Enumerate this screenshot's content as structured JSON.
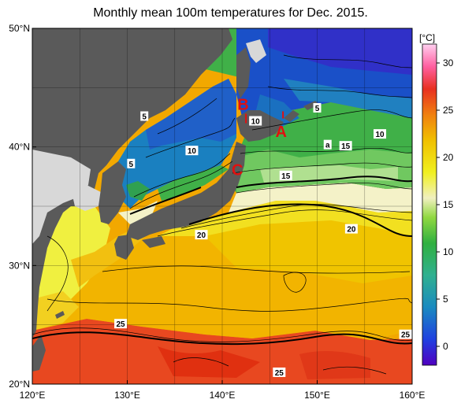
{
  "title": "Monthly mean 100m temperatures for Dec. 2015.",
  "map": {
    "lon_range": [
      120,
      160
    ],
    "lat_range": [
      20,
      50
    ],
    "lon_ticks": [
      {
        "lon": 120,
        "label": "120°E"
      },
      {
        "lon": 130,
        "label": "130°E"
      },
      {
        "lon": 140,
        "label": "140°E"
      },
      {
        "lon": 150,
        "label": "150°E"
      },
      {
        "lon": 160,
        "label": "160°E"
      }
    ],
    "lat_ticks": [
      {
        "lat": 50,
        "label": "50°N"
      },
      {
        "lat": 40,
        "label": "40°N"
      },
      {
        "lat": 30,
        "label": "30°N"
      },
      {
        "lat": 20,
        "label": "20°N"
      }
    ],
    "grid": true,
    "land_color": "#5a5a5a",
    "no_data_color": "#d8d8d8"
  },
  "colorbar": {
    "unit": "[°C]",
    "range": [
      -2,
      32
    ],
    "tick_labels": [
      "30",
      "25",
      "20",
      "15",
      "10",
      "5",
      "0"
    ],
    "tick_values": [
      30,
      25,
      20,
      15,
      10,
      5,
      0
    ]
  },
  "contour_labels": [
    {
      "text": "5",
      "lon": 150,
      "lat": 43.3
    },
    {
      "text": "5",
      "lon": 131.8,
      "lat": 42.6
    },
    {
      "text": "5",
      "lon": 130.4,
      "lat": 38.6
    },
    {
      "text": "10",
      "lon": 143.5,
      "lat": 42.2
    },
    {
      "text": "10",
      "lon": 136.8,
      "lat": 39.7
    },
    {
      "text": "10",
      "lon": 156.6,
      "lat": 41.1
    },
    {
      "text": "15",
      "lon": 153,
      "lat": 40.1
    },
    {
      "text": "15",
      "lon": 146.7,
      "lat": 37.6
    },
    {
      "text": "20",
      "lon": 137.8,
      "lat": 32.6
    },
    {
      "text": "20",
      "lon": 153.6,
      "lat": 33.1
    },
    {
      "text": "25",
      "lon": 129.3,
      "lat": 25.1
    },
    {
      "text": "25",
      "lon": 159.3,
      "lat": 24.2
    },
    {
      "text": "25",
      "lon": 146,
      "lat": 21
    },
    {
      "text": "a",
      "lon": 151.1,
      "lat": 40.2
    }
  ],
  "markers": [
    {
      "text": "A",
      "lon": 146.2,
      "lat": 41.3
    },
    {
      "text": "B",
      "lon": 142.2,
      "lat": 43.6
    },
    {
      "text": "C",
      "lon": 141.6,
      "lat": 38.1
    }
  ],
  "colors": {
    "marker": "#e01010",
    "kuroshio_warm": "#f2a000",
    "subtropical": "#f0c000",
    "mixed_water": "#f5f5c8",
    "oyashio": "#2a8a3a",
    "cold": "#1a40c0"
  }
}
